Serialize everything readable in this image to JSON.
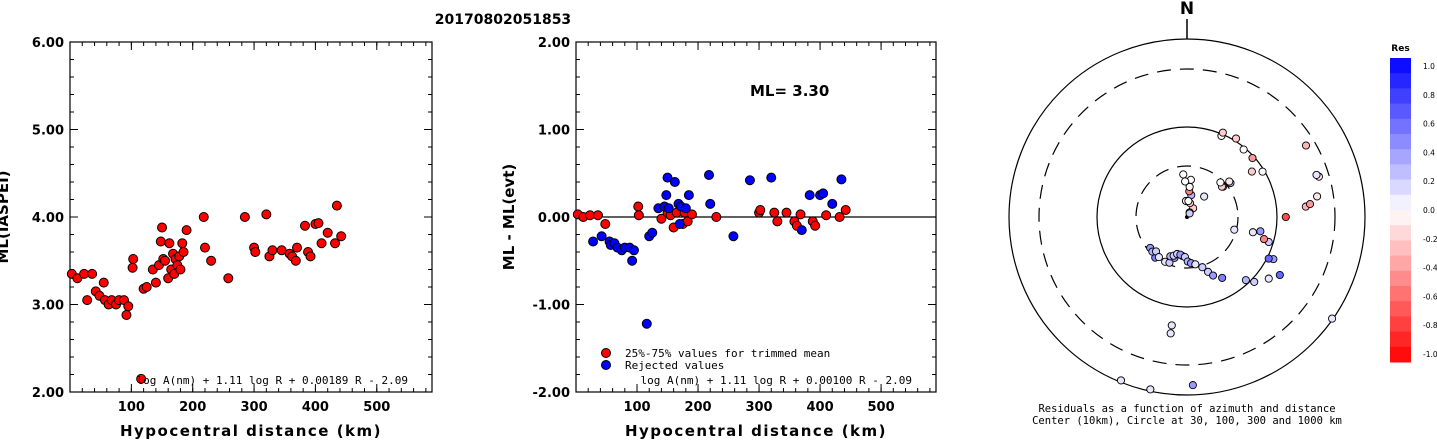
{
  "title": "20170802051853",
  "chart_data": [
    {
      "type": "scatter",
      "panel": "left",
      "xlabel": "Hypocentral distance (km)",
      "ylabel": "ML(IASPEI)",
      "xlim": [
        0,
        590
      ],
      "ylim": [
        2.0,
        6.0
      ],
      "x_ticks": [
        "100",
        "200",
        "300",
        "400",
        "500"
      ],
      "y_ticks": [
        "2.00",
        "3.00",
        "4.00",
        "5.00",
        "6.00"
      ],
      "formula": "log A(nm) + 1.11 log R + 0.00189 R - 2.09",
      "marker_color": "#ff0000",
      "points": [
        [
          3,
          3.35
        ],
        [
          12,
          3.3
        ],
        [
          23,
          3.35
        ],
        [
          28,
          3.05
        ],
        [
          36,
          3.35
        ],
        [
          42,
          3.15
        ],
        [
          48,
          3.1
        ],
        [
          55,
          3.25
        ],
        [
          57,
          3.05
        ],
        [
          63,
          3.0
        ],
        [
          68,
          3.05
        ],
        [
          75,
          3.0
        ],
        [
          80,
          3.05
        ],
        [
          88,
          3.05
        ],
        [
          92,
          2.88
        ],
        [
          95,
          2.98
        ],
        [
          102,
          3.42
        ],
        [
          103,
          3.52
        ],
        [
          116,
          2.15
        ],
        [
          120,
          3.18
        ],
        [
          125,
          3.2
        ],
        [
          135,
          3.4
        ],
        [
          140,
          3.25
        ],
        [
          145,
          3.45
        ],
        [
          148,
          3.72
        ],
        [
          150,
          3.88
        ],
        [
          152,
          3.52
        ],
        [
          155,
          3.5
        ],
        [
          160,
          3.3
        ],
        [
          162,
          3.7
        ],
        [
          165,
          3.4
        ],
        [
          168,
          3.58
        ],
        [
          170,
          3.35
        ],
        [
          172,
          3.52
        ],
        [
          175,
          3.45
        ],
        [
          178,
          3.55
        ],
        [
          180,
          3.4
        ],
        [
          183,
          3.7
        ],
        [
          185,
          3.6
        ],
        [
          190,
          3.85
        ],
        [
          218,
          4.0
        ],
        [
          220,
          3.65
        ],
        [
          230,
          3.5
        ],
        [
          258,
          3.3
        ],
        [
          285,
          4.0
        ],
        [
          300,
          3.65
        ],
        [
          302,
          3.6
        ],
        [
          320,
          4.03
        ],
        [
          325,
          3.55
        ],
        [
          330,
          3.62
        ],
        [
          345,
          3.62
        ],
        [
          358,
          3.58
        ],
        [
          362,
          3.55
        ],
        [
          368,
          3.5
        ],
        [
          370,
          3.65
        ],
        [
          383,
          3.9
        ],
        [
          388,
          3.6
        ],
        [
          392,
          3.55
        ],
        [
          400,
          3.92
        ],
        [
          405,
          3.93
        ],
        [
          410,
          3.7
        ],
        [
          420,
          3.82
        ],
        [
          432,
          3.7
        ],
        [
          435,
          4.13
        ],
        [
          442,
          3.78
        ]
      ]
    },
    {
      "type": "scatter",
      "panel": "middle",
      "xlabel": "Hypocentral distance (km)",
      "ylabel": "ML - ML(evt)",
      "xlim": [
        0,
        590
      ],
      "ylim": [
        -2.0,
        2.0
      ],
      "x_ticks": [
        "100",
        "200",
        "300",
        "400",
        "500"
      ],
      "y_ticks": [
        "-2.00",
        "-1.00",
        "0.00",
        "1.00",
        "2.00"
      ],
      "annotation": "ML= 3.30",
      "formula": "log A(nm) + 1.11 log R + 0.00100 R - 2.09",
      "zero_line": true,
      "legend": [
        {
          "label": "25%-75% values for trimmed mean",
          "color": "#ff0000"
        },
        {
          "label": "Rejected values",
          "color": "#0000ff"
        }
      ],
      "series": [
        {
          "name": "25%-75% values for trimmed mean",
          "color": "#ff0000",
          "points": [
            [
              3,
              0.03
            ],
            [
              12,
              0.0
            ],
            [
              23,
              0.02
            ],
            [
              36,
              0.02
            ],
            [
              48,
              -0.08
            ],
            [
              102,
              0.12
            ],
            [
              103,
              0.02
            ],
            [
              140,
              -0.02
            ],
            [
              150,
              0.05
            ],
            [
              155,
              0.02
            ],
            [
              160,
              -0.12
            ],
            [
              165,
              0.05
            ],
            [
              175,
              -0.08
            ],
            [
              178,
              0.05
            ],
            [
              183,
              -0.05
            ],
            [
              190,
              0.03
            ],
            [
              230,
              0.0
            ],
            [
              300,
              0.05
            ],
            [
              302,
              0.08
            ],
            [
              325,
              0.05
            ],
            [
              330,
              -0.05
            ],
            [
              345,
              0.05
            ],
            [
              358,
              -0.05
            ],
            [
              362,
              -0.1
            ],
            [
              368,
              0.03
            ],
            [
              388,
              -0.05
            ],
            [
              392,
              -0.1
            ],
            [
              410,
              0.02
            ],
            [
              432,
              0.0
            ],
            [
              442,
              0.08
            ]
          ]
        },
        {
          "name": "Rejected values",
          "color": "#0000ff",
          "points": [
            [
              28,
              -0.28
            ],
            [
              42,
              -0.22
            ],
            [
              55,
              -0.28
            ],
            [
              57,
              -0.32
            ],
            [
              63,
              -0.3
            ],
            [
              68,
              -0.35
            ],
            [
              75,
              -0.38
            ],
            [
              80,
              -0.35
            ],
            [
              88,
              -0.35
            ],
            [
              92,
              -0.5
            ],
            [
              95,
              -0.38
            ],
            [
              116,
              -1.22
            ],
            [
              120,
              -0.22
            ],
            [
              125,
              -0.18
            ],
            [
              135,
              0.1
            ],
            [
              145,
              0.12
            ],
            [
              148,
              0.25
            ],
            [
              150,
              0.45
            ],
            [
              152,
              0.1
            ],
            [
              162,
              0.4
            ],
            [
              168,
              0.15
            ],
            [
              170,
              -0.08
            ],
            [
              172,
              0.12
            ],
            [
              180,
              0.1
            ],
            [
              185,
              0.25
            ],
            [
              218,
              0.48
            ],
            [
              220,
              0.15
            ],
            [
              258,
              -0.22
            ],
            [
              285,
              0.42
            ],
            [
              320,
              0.45
            ],
            [
              370,
              -0.15
            ],
            [
              383,
              0.25
            ],
            [
              400,
              0.25
            ],
            [
              405,
              0.27
            ],
            [
              420,
              0.15
            ],
            [
              435,
              0.43
            ]
          ]
        }
      ]
    },
    {
      "type": "scatter",
      "panel": "polar",
      "north_label": "N",
      "caption_line1": "Residuals as a function of azimuth and distance",
      "caption_line2": "Center (10km), Circle at 30, 100, 300 and 1000 km",
      "colorbar": {
        "title": "Res",
        "ticks": [
          "1.0",
          "0.8",
          "0.6",
          "0.4",
          "0.2",
          "0.0",
          "-0.2",
          "-0.4",
          "-0.6",
          "-0.8",
          "-1.0"
        ],
        "range": [
          -1.0,
          1.0
        ]
      },
      "stations": [
        [
          125,
          199,
          0.1
        ],
        [
          178,
          189,
          0.4
        ],
        [
          192,
          198,
          0.1
        ],
        [
          202,
          198,
          0.1
        ],
        [
          188,
          123,
          0.1
        ],
        [
          188,
          132,
          0.1
        ],
        [
          218,
          58,
          0.5
        ],
        [
          230,
          54,
          0.4
        ],
        [
          225,
          55,
          0.3
        ],
        [
          222,
          52,
          0.2
        ],
        [
          215,
          55,
          0.1
        ],
        [
          206,
          56,
          0.1
        ],
        [
          201,
          55,
          0.2
        ],
        [
          197,
          48,
          0.4
        ],
        [
          203,
          48,
          0.3
        ],
        [
          199,
          46,
          0.2
        ],
        [
          195,
          43,
          0.2
        ],
        [
          187,
          44,
          0.3
        ],
        [
          190,
          43,
          0.4
        ],
        [
          183,
          45,
          0.2
        ],
        [
          179,
          50,
          0.3
        ],
        [
          175,
          52,
          0.4
        ],
        [
          170,
          54,
          0.1
        ],
        [
          163,
          59,
          0.2
        ],
        [
          159,
          66,
          0.2
        ],
        [
          156,
          72,
          0.4
        ],
        [
          150,
          79,
          0.5
        ],
        [
          137,
          97,
          0.3
        ],
        [
          134,
          105,
          0.2
        ],
        [
          127,
          115,
          0.1
        ],
        [
          122,
          123,
          0.6
        ],
        [
          116,
          108,
          0.4
        ],
        [
          117,
          103,
          0.6
        ],
        [
          107,
          96,
          0.2
        ],
        [
          106,
          90,
          -0.5
        ],
        [
          105,
          55,
          0.1
        ],
        [
          103,
          76,
          0.1
        ],
        [
          101,
          84,
          0.4
        ],
        [
          90,
          111,
          -0.7
        ],
        [
          85,
          134,
          -0.3
        ],
        [
          84,
          139,
          -0.4
        ],
        [
          81,
          148,
          -0.1
        ],
        [
          73,
          155,
          -0.1
        ],
        [
          72,
          153,
          0.1
        ],
        [
          59,
          156,
          -0.3
        ],
        [
          59,
          99,
          0.0
        ],
        [
          55,
          89,
          -0.2
        ],
        [
          52,
          62,
          0.3
        ],
        [
          50,
          62,
          -0.1
        ],
        [
          50,
          53,
          -0.2
        ],
        [
          49,
          52,
          -0.2
        ],
        [
          44,
          54,
          0.0
        ],
        [
          48,
          99,
          -0.4
        ],
        [
          40,
          99,
          0.0
        ],
        [
          23,
          99,
          0.0
        ],
        [
          23,
          103,
          -0.2
        ],
        [
          32,
          104,
          -0.2
        ],
        [
          40,
          30,
          0.1
        ],
        [
          35,
          12,
          -0.2
        ],
        [
          30,
          6,
          0.1
        ],
        [
          36,
          5,
          0.2
        ],
        [
          12,
          16,
          -0.2
        ],
        [
          11,
          25,
          0.3
        ],
        [
          5,
          18,
          0.0
        ],
        [
          5,
          29,
          -0.5
        ],
        [
          5,
          34,
          0.0
        ],
        [
          6,
          42,
          0.0
        ],
        [
          357,
          40,
          0.0
        ],
        [
          355,
          48,
          0.0
        ]
      ]
    }
  ]
}
